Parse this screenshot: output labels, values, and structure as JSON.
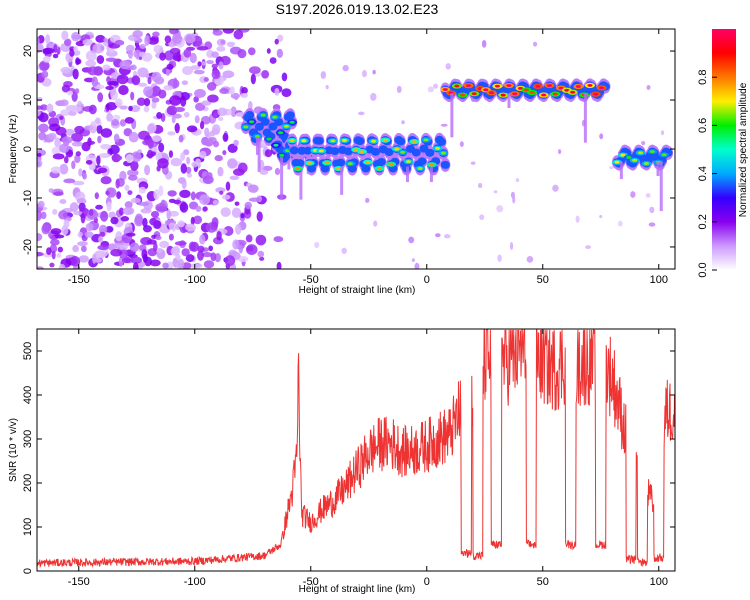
{
  "title": "S197.2026.019.13.02.E23",
  "chart_data": [
    {
      "type": "heatmap",
      "name": "spectrogram",
      "xlabel": "Height of straight line (km)",
      "ylabel": "Frequency (Hz)",
      "xlim": [
        -168,
        107
      ],
      "ylim": [
        -24.5,
        24.5
      ],
      "xticks": [
        -150,
        -100,
        -50,
        0,
        50,
        100
      ],
      "yticks": [
        -20,
        -10,
        0,
        10,
        20
      ],
      "colorbar": {
        "label": "Normalized spectral amplitude",
        "range": [
          0,
          1
        ],
        "ticks": [
          "0.0",
          "0.2",
          "0.4",
          "0.6",
          "0.8"
        ],
        "colors": [
          "#ffffff",
          "#cc99ff",
          "#8800ee",
          "#3300ff",
          "#00aaff",
          "#00ffcc",
          "#00ee00",
          "#ffee00",
          "#ff7700",
          "#ff0000",
          "#ff0066"
        ]
      },
      "noise_region": {
        "x": [
          -168,
          -60
        ],
        "freq_range": [
          -24.5,
          24.5
        ]
      },
      "ridge_segments": [
        {
          "x": [
            -78,
            -58
          ],
          "freq": [
            2,
            7
          ],
          "amplitude": 0.45
        },
        {
          "x": [
            -65,
            -50
          ],
          "freq": [
            -2,
            1
          ],
          "amplitude": 0.4
        },
        {
          "x": [
            -58,
            8
          ],
          "freq": [
            -4,
            2
          ],
          "amplitude": 0.55
        },
        {
          "x": [
            8,
            77
          ],
          "freq": [
            11,
            13
          ],
          "amplitude": 0.85
        },
        {
          "x": [
            82,
            104
          ],
          "freq": [
            -3,
            -0.5
          ],
          "amplitude": 0.5
        }
      ]
    },
    {
      "type": "line",
      "name": "snr",
      "xlabel": "Height of straight line (km)",
      "ylabel": "SNR (10 * v/v)",
      "xlim": [
        -168,
        107
      ],
      "ylim": [
        0,
        550
      ],
      "xticks": [
        -150,
        -100,
        -50,
        0,
        50,
        100
      ],
      "yticks": [
        0,
        100,
        200,
        300,
        400,
        500
      ],
      "color": "#ee3333",
      "profile": {
        "x": [
          -168,
          -140,
          -100,
          -70,
          -63,
          -58,
          -56,
          -55.3,
          -54,
          -50,
          -45,
          -40,
          -35,
          -30,
          -25,
          -20,
          -15,
          -10,
          -5,
          0,
          5,
          10,
          15,
          20,
          25,
          30,
          35,
          40,
          45,
          50,
          55,
          60,
          65,
          70,
          75,
          80,
          85,
          90,
          95,
          100,
          103,
          107
        ],
        "y": [
          18,
          20,
          22,
          35,
          60,
          180,
          260,
          450,
          130,
          110,
          140,
          160,
          190,
          230,
          270,
          290,
          290,
          270,
          275,
          285,
          300,
          310,
          370,
          410,
          480,
          490,
          480,
          500,
          510,
          480,
          460,
          480,
          470,
          480,
          480,
          440,
          330,
          230,
          180,
          130,
          360,
          370
        ]
      },
      "dips": [
        {
          "x": 17,
          "y": 40
        },
        {
          "x": 22,
          "y": 35
        },
        {
          "x": 30,
          "y": 60
        },
        {
          "x": 45,
          "y": 60
        },
        {
          "x": 62,
          "y": 60
        },
        {
          "x": 75,
          "y": 60
        },
        {
          "x": 88,
          "y": 25
        },
        {
          "x": 93,
          "y": 20
        },
        {
          "x": 100,
          "y": 30
        }
      ]
    }
  ]
}
